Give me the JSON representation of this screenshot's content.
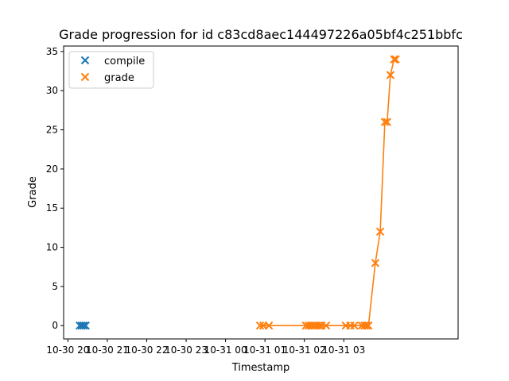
{
  "chart_data": {
    "type": "scatter",
    "title": "Grade progression for id c83cd8aec144497226a05bf4c251bbfc",
    "xlabel": "Timestamp",
    "ylabel": "Grade",
    "x_unit": "hours",
    "xlim": [
      -1.3,
      118.8
    ],
    "ylim": [
      -1.7,
      35.7
    ],
    "x_ticks": [
      {
        "value": 0,
        "label": "10-30 20"
      },
      {
        "value": 12,
        "label": "10-30 21"
      },
      {
        "value": 24,
        "label": "10-30 22"
      },
      {
        "value": 36,
        "label": "10-30 23"
      },
      {
        "value": 48,
        "label": "10-31 00"
      },
      {
        "value": 60,
        "label": "10-31 01"
      },
      {
        "value": 72,
        "label": "10-31 02"
      },
      {
        "value": 84,
        "label": "10-31 03"
      }
    ],
    "y_ticks": [
      0,
      5,
      10,
      15,
      20,
      25,
      30,
      35
    ],
    "legend": {
      "placement": "upper-left"
    },
    "series": [
      {
        "name": "compile",
        "color": "#1f77b4",
        "marker": "x",
        "line": false,
        "x": [
          3.6,
          4.2,
          4.8,
          5.4
        ],
        "y": [
          0,
          0,
          0,
          0
        ]
      },
      {
        "name": "grade",
        "color": "#ff7f0e",
        "marker": "x",
        "line": true,
        "x": [
          58.5,
          59.5,
          61.2,
          72.5,
          73.3,
          74.0,
          74.6,
          75.2,
          75.8,
          76.5,
          77.2,
          78.6,
          84.6,
          86.0,
          87.2,
          89.5,
          90.3,
          90.9,
          91.5,
          93.6,
          95.1,
          96.5,
          97.2,
          98.2,
          99.3,
          99.8
        ],
        "y": [
          0,
          0,
          0,
          0,
          0,
          0,
          0,
          0,
          0,
          0,
          0,
          0,
          0,
          0,
          0,
          0,
          0,
          0,
          0,
          8,
          12,
          26,
          26,
          32,
          34,
          34
        ]
      }
    ]
  }
}
